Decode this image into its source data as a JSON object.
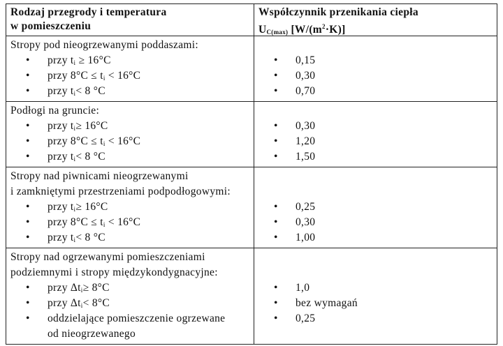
{
  "header": {
    "left": [
      "Rodzaj przegrody i temperatura",
      "w pomieszczeniu"
    ],
    "right_line1": "Współczynnik przenikania ciepła",
    "right_line2": {
      "symbol": "U",
      "sub": "C(max)",
      "before_sup": " [W/(m",
      "sup": "2",
      "after": "·K)]"
    }
  },
  "table": {
    "rows": [
      {
        "heading": [
          "Stropy pod nieogrzewanymi poddaszami:"
        ],
        "items": [
          {
            "before": "przy t",
            "sub": "i",
            "after": " ≥ 16°C"
          },
          {
            "before": "przy 8°C ≤ t",
            "sub": "i",
            "after": " < 16°C"
          },
          {
            "before": "przy t",
            "sub": "i",
            "after": "< 8 °C"
          }
        ],
        "values": [
          "0,15",
          "0,30",
          "0,70"
        ]
      },
      {
        "heading": [
          "Podłogi na gruncie:"
        ],
        "items": [
          {
            "before": "przy t",
            "sub": "i",
            "after": "≥ 16°C"
          },
          {
            "before": "przy 8°C ≤ t",
            "sub": "i",
            "after": " < 16°C"
          },
          {
            "before": "przy t",
            "sub": "i",
            "after": "< 8 °C"
          }
        ],
        "values": [
          "0,30",
          "1,20",
          "1,50"
        ]
      },
      {
        "heading": [
          "Stropy nad piwnicami nieogrzewanymi",
          "i zamkniętymi przestrzeniami podpodłogowymi:"
        ],
        "items": [
          {
            "before": "przy t",
            "sub": "i",
            "after": "≥ 16°C"
          },
          {
            "before": "przy 8°C ≤ t",
            "sub": "i",
            "after": " < 16°C"
          },
          {
            "before": "przy t",
            "sub": "i",
            "after": "< 8 °C"
          }
        ],
        "values": [
          "0,25",
          "0,30",
          "1,00"
        ]
      },
      {
        "heading": [
          "Stropy nad ogrzewanymi pomieszczeniami",
          "podziemnymi i stropy międzykondygnacyjne:"
        ],
        "items": [
          {
            "before": "przy Δt",
            "sub": "i",
            "after": "≥ 8°C"
          },
          {
            "before": "przy Δt",
            "sub": "i",
            "after": "< 8°C"
          },
          {
            "lines": [
              "oddzielające pomieszczenie ogrzewane",
              "od nieogrzewanego"
            ]
          }
        ],
        "values": [
          "1,0",
          "bez wymagań",
          "0,25"
        ]
      }
    ]
  }
}
